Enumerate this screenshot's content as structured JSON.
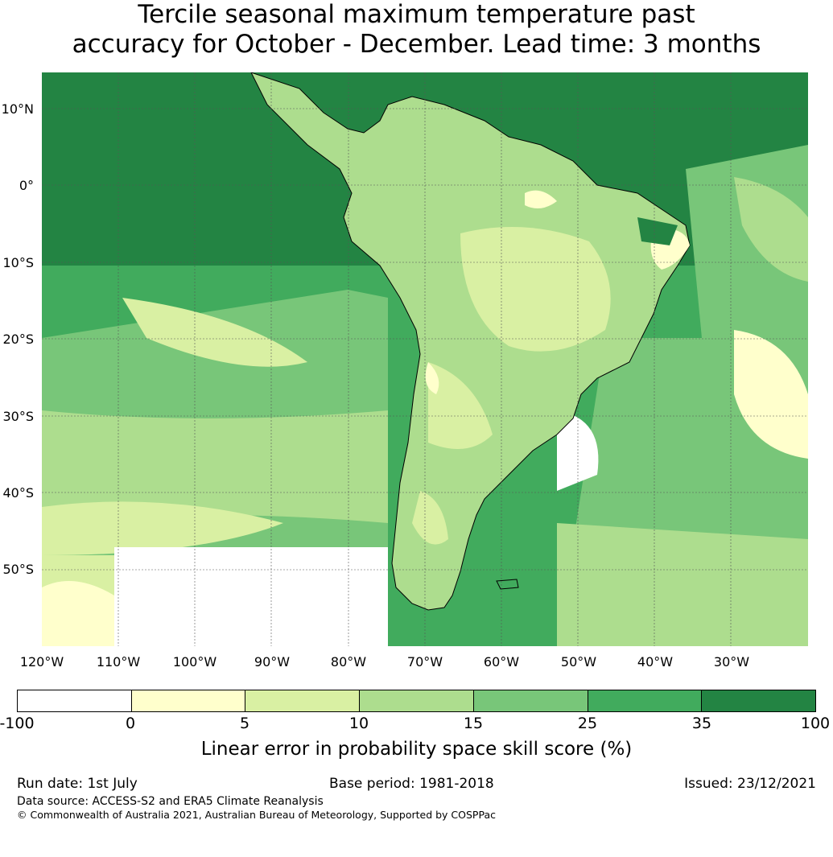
{
  "title": {
    "line1": "Tercile seasonal maximum temperature past",
    "line2": "accuracy for October - December. Lead time: 3 months"
  },
  "map": {
    "lat_labels": [
      "10°N",
      "0°",
      "10°S",
      "20°S",
      "30°S",
      "40°S",
      "50°S"
    ],
    "lon_labels": [
      "120°W",
      "110°W",
      "100°W",
      "90°W",
      "80°W",
      "70°W",
      "60°W",
      "50°W",
      "40°W",
      "30°W"
    ],
    "ocean_base_color": "#40a55e",
    "land_base_color": "#a7dc91",
    "grid_line_color": "#555555"
  },
  "colorbar": {
    "ticks": [
      "-100",
      "0",
      "5",
      "10",
      "15",
      "25",
      "35",
      "100"
    ],
    "colors": [
      "#ffffff",
      "#ffffcc",
      "#d9f0a3",
      "#addd8e",
      "#78c679",
      "#41ab5d",
      "#238443"
    ],
    "label": "Linear error in probability space skill score (%)"
  },
  "footer": {
    "run_date": "Run date: 1st July",
    "base_period": "Base period: 1981-2018",
    "issued": "Issued: 23/12/2021",
    "data_source": "Data source: ACCESS-S2 and ERA5 Climate Reanalysis",
    "copyright": "© Commonwealth of Australia 2021, Australian Bureau of Meteorology, Supported by COSPPac"
  }
}
